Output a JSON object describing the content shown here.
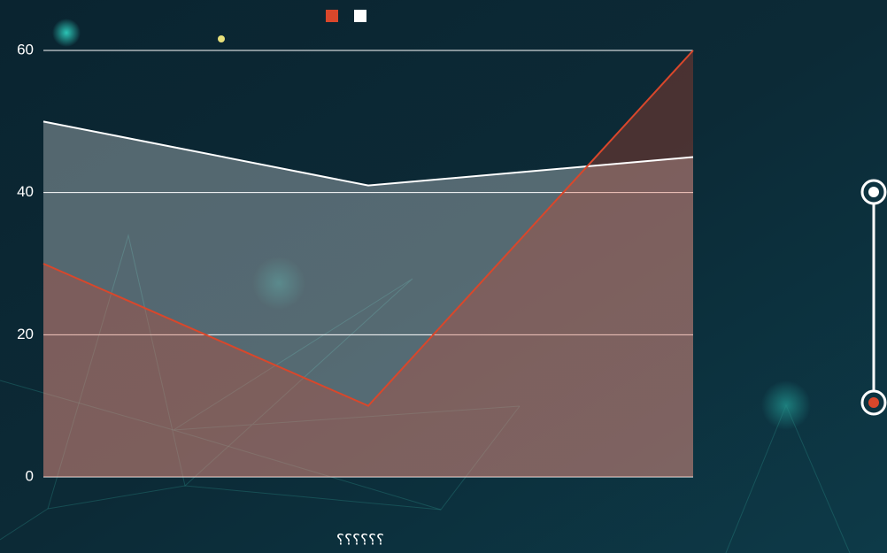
{
  "chart_data": {
    "type": "area",
    "x_label": "؟؟؟؟؟؟",
    "categories": [
      null,
      null,
      null
    ],
    "series": [
      {
        "color": "#d9472b",
        "values": [
          30,
          10,
          60
        ]
      },
      {
        "color": "#ffffff",
        "values": [
          50,
          41,
          45
        ]
      }
    ],
    "ylim": [
      0,
      60
    ],
    "yticks": [
      0,
      20,
      40,
      60
    ],
    "grid": true
  }
}
